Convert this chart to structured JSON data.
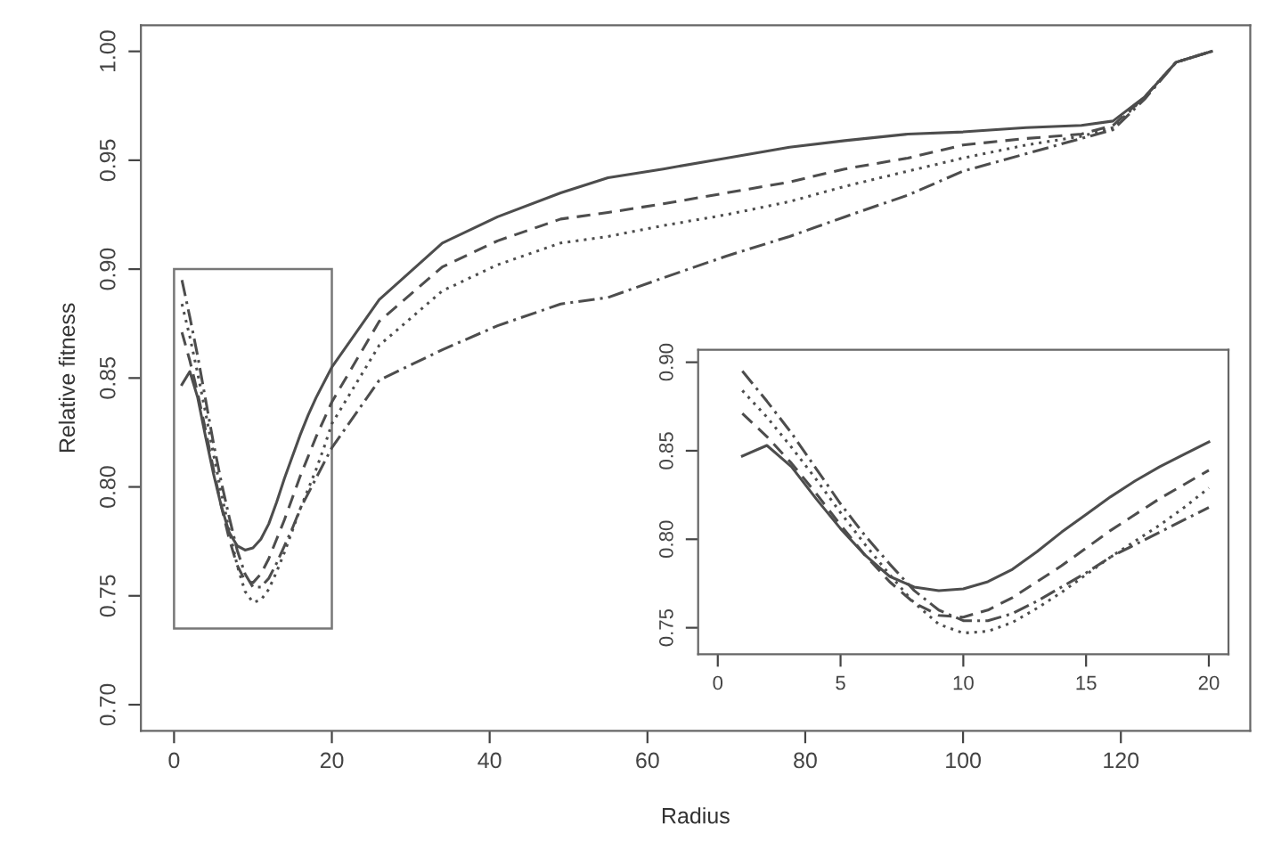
{
  "chart_data": [
    {
      "type": "line",
      "xlabel": "Radius",
      "ylabel": "Relative fitness",
      "xlim": [
        -4.2,
        136.4
      ],
      "ylim": [
        0.688,
        1.012
      ],
      "xticks": [
        0,
        20,
        40,
        60,
        80,
        100,
        120
      ],
      "yticks": [
        {
          "value": 0.7,
          "label": "0.70"
        },
        {
          "value": 0.75,
          "label": "0.75"
        },
        {
          "value": 0.8,
          "label": "0.80"
        },
        {
          "value": 0.85,
          "label": "0.85"
        },
        {
          "value": 0.9,
          "label": "0.90"
        },
        {
          "value": 0.95,
          "label": "0.95"
        },
        {
          "value": 1.0,
          "label": "1.00"
        }
      ],
      "grid": false,
      "legend": false,
      "marker": "none",
      "x": [
        1,
        2,
        3,
        4,
        5,
        6,
        7,
        8,
        9,
        10,
        11,
        12,
        13,
        14,
        15,
        16,
        17,
        18,
        19,
        20,
        26,
        34,
        41,
        49,
        55,
        62,
        70,
        78,
        85,
        93,
        100,
        108,
        115,
        119,
        123,
        127,
        131.5
      ],
      "series": [
        {
          "color": "#4d4d4d",
          "line_style": "solid",
          "values": [
            0.847,
            0.853,
            0.841,
            0.823,
            0.806,
            0.791,
            0.779,
            0.773,
            0.771,
            0.772,
            0.776,
            0.783,
            0.793,
            0.804,
            0.814,
            0.824,
            0.833,
            0.841,
            0.848,
            0.855,
            0.886,
            0.912,
            0.924,
            0.935,
            0.942,
            0.946,
            0.951,
            0.956,
            0.959,
            0.962,
            0.963,
            0.965,
            0.966,
            0.968,
            0.979,
            0.995,
            1.0
          ]
        },
        {
          "color": "#4d4d4d",
          "line_style": "dashed",
          "values": [
            0.871,
            0.858,
            0.843,
            0.826,
            0.808,
            0.791,
            0.776,
            0.764,
            0.757,
            0.756,
            0.76,
            0.767,
            0.776,
            0.785,
            0.795,
            0.805,
            0.814,
            0.823,
            0.831,
            0.839,
            0.876,
            0.901,
            0.913,
            0.923,
            0.926,
            0.93,
            0.935,
            0.94,
            0.946,
            0.951,
            0.957,
            0.96,
            0.962,
            0.966,
            0.979,
            0.995,
            1.0
          ]
        },
        {
          "color": "#4d4d4d",
          "line_style": "dotted",
          "values": [
            0.884,
            0.869,
            0.852,
            0.834,
            0.815,
            0.797,
            0.78,
            0.764,
            0.752,
            0.747,
            0.748,
            0.753,
            0.761,
            0.77,
            0.78,
            0.79,
            0.799,
            0.808,
            0.818,
            0.829,
            0.865,
            0.89,
            0.902,
            0.912,
            0.915,
            0.92,
            0.925,
            0.931,
            0.938,
            0.945,
            0.951,
            0.957,
            0.961,
            0.965,
            0.979,
            0.995,
            1.0
          ]
        },
        {
          "color": "#4d4d4d",
          "line_style": "dashdot",
          "values": [
            0.895,
            0.878,
            0.86,
            0.84,
            0.82,
            0.802,
            0.786,
            0.771,
            0.76,
            0.754,
            0.754,
            0.758,
            0.765,
            0.773,
            0.781,
            0.79,
            0.797,
            0.804,
            0.811,
            0.818,
            0.849,
            0.863,
            0.874,
            0.884,
            0.887,
            0.896,
            0.906,
            0.915,
            0.924,
            0.934,
            0.945,
            0.953,
            0.96,
            0.964,
            0.978,
            0.995,
            1.0
          ]
        }
      ]
    },
    {
      "type": "line",
      "xlim": [
        -0.8,
        20.8
      ],
      "ylim": [
        0.735,
        0.907
      ],
      "xticks": [
        0,
        5,
        10,
        15,
        20
      ],
      "yticks": [
        0.75,
        {
          "value": 0.8,
          "label": "0.80"
        },
        0.85,
        {
          "value": 0.9,
          "label": "0.90"
        }
      ],
      "grid": false,
      "legend": false,
      "marker": "none",
      "x": [
        1,
        2,
        3,
        4,
        5,
        6,
        7,
        8,
        9,
        10,
        11,
        12,
        13,
        14,
        15,
        16,
        17,
        18,
        19,
        20
      ],
      "series": [
        {
          "color": "#4d4d4d",
          "line_style": "solid",
          "values": [
            0.847,
            0.853,
            0.841,
            0.823,
            0.806,
            0.791,
            0.779,
            0.773,
            0.771,
            0.772,
            0.776,
            0.783,
            0.793,
            0.804,
            0.814,
            0.824,
            0.833,
            0.841,
            0.848,
            0.855
          ]
        },
        {
          "color": "#4d4d4d",
          "line_style": "dashed",
          "values": [
            0.871,
            0.858,
            0.843,
            0.826,
            0.808,
            0.791,
            0.776,
            0.764,
            0.757,
            0.756,
            0.76,
            0.767,
            0.776,
            0.785,
            0.795,
            0.805,
            0.814,
            0.823,
            0.831,
            0.839
          ]
        },
        {
          "color": "#4d4d4d",
          "line_style": "dotted",
          "values": [
            0.884,
            0.869,
            0.852,
            0.834,
            0.815,
            0.797,
            0.78,
            0.764,
            0.752,
            0.747,
            0.748,
            0.753,
            0.761,
            0.77,
            0.78,
            0.79,
            0.799,
            0.808,
            0.818,
            0.829
          ]
        },
        {
          "color": "#4d4d4d",
          "line_style": "dashdot",
          "values": [
            0.895,
            0.878,
            0.86,
            0.84,
            0.82,
            0.802,
            0.786,
            0.771,
            0.76,
            0.754,
            0.754,
            0.758,
            0.765,
            0.773,
            0.781,
            0.79,
            0.797,
            0.804,
            0.811,
            0.818
          ]
        }
      ]
    }
  ]
}
